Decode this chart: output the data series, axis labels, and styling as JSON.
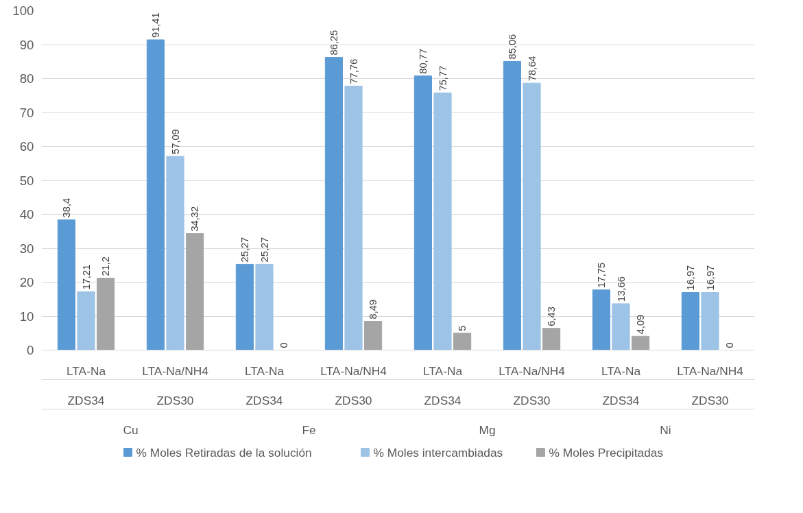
{
  "chart_data": {
    "type": "bar",
    "categories": [
      "LTA-Na",
      "LTA-Na/NH4",
      "LTA-Na",
      "LTA-Na/NH4",
      "LTA-Na",
      "LTA-Na/NH4",
      "LTA-Na",
      "LTA-Na/NH4"
    ],
    "annotations": [
      "ZDS34",
      "ZDS30",
      "ZDS34",
      "ZDS30",
      "ZDS34",
      "ZDS30",
      "ZDS34",
      "ZDS30",
      "Cu",
      "Fe",
      "Mg",
      "Ni"
    ],
    "series": [
      {
        "name": "% Moles Retiradas de la solución",
        "color": "#5b9bd5",
        "values": [
          38.4,
          91.41,
          25.27,
          86.25,
          80.77,
          85.06,
          17.75,
          16.97
        ],
        "value_labels": [
          "38,4",
          "91,41",
          "25,27",
          "86,25",
          "80,77",
          "85,06",
          "17,75",
          "16,97"
        ]
      },
      {
        "name": "% Moles intercambiadas",
        "color": "#9dc3e6",
        "values": [
          17.21,
          57.09,
          25.27,
          77.76,
          75.77,
          78.64,
          13.66,
          16.97
        ],
        "value_labels": [
          "17,21",
          "57,09",
          "25,27",
          "77,76",
          "75,77",
          "78,64",
          "13,66",
          "16,97"
        ]
      },
      {
        "name": "% Moles Precipitadas",
        "color": "#a5a5a5",
        "values": [
          21.2,
          34.32,
          0,
          8.49,
          5,
          6.43,
          4.09,
          0
        ],
        "value_labels": [
          "21,2",
          "34,32",
          "0",
          "8,49",
          "5",
          "6,43",
          "4,09",
          "0"
        ]
      }
    ],
    "ylim": [
      0,
      100
    ],
    "yticks": [
      0,
      10,
      20,
      30,
      40,
      50,
      60,
      70,
      80,
      90,
      100
    ],
    "grid": "y",
    "legend": "bottom"
  }
}
